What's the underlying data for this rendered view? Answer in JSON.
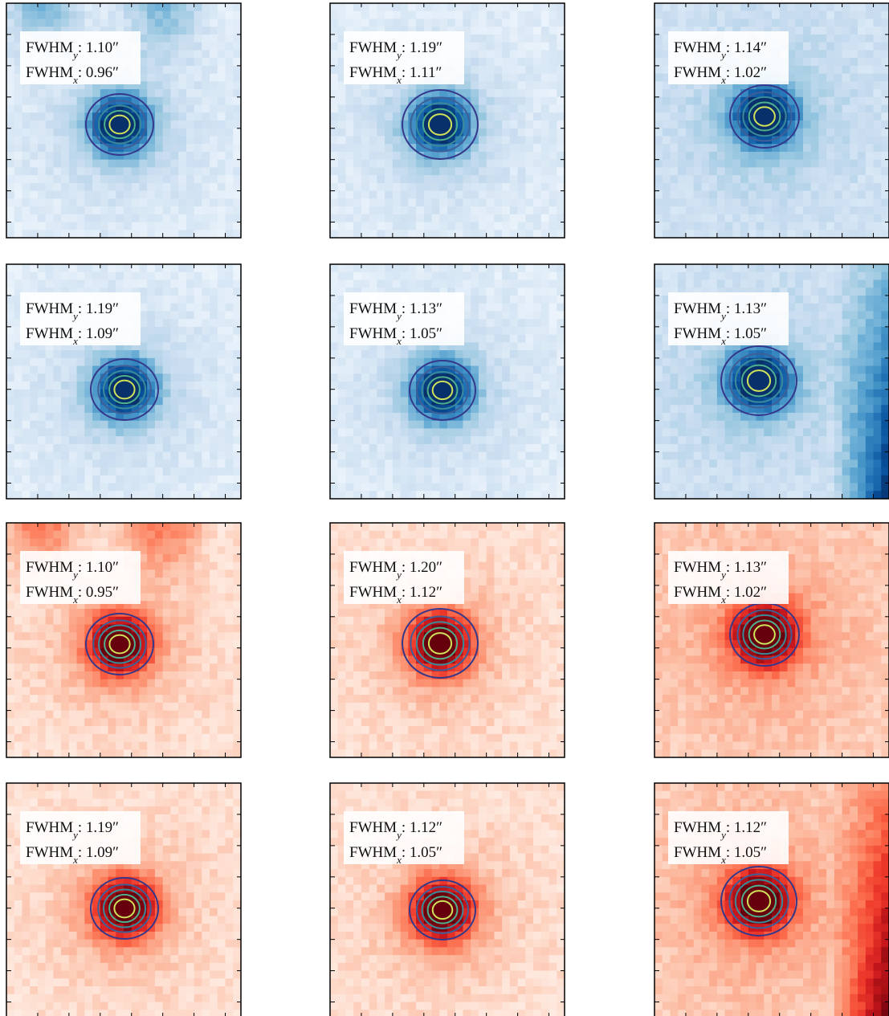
{
  "panels": [
    {
      "lines": [
        {
          "name": "FWHM",
          "sub": "y",
          "rest": ": 1.10″"
        },
        {
          "name": "FWHM",
          "sub": "x",
          "rest": ": 0.96″"
        }
      ]
    },
    {
      "lines": [
        {
          "name": "FWHM",
          "sub": "y",
          "rest": ": 1.19″"
        },
        {
          "name": "FWHM",
          "sub": "x",
          "rest": ": 1.11″"
        }
      ]
    },
    {
      "lines": [
        {
          "name": "FWHM",
          "sub": "y",
          "rest": ": 1.14″"
        },
        {
          "name": "FWHM",
          "sub": "x",
          "rest": ": 1.02″"
        }
      ]
    },
    {
      "lines": [
        {
          "name": "FWHM",
          "sub": "y",
          "rest": ": 1.19″"
        },
        {
          "name": "FWHM",
          "sub": "x",
          "rest": ": 1.09″"
        }
      ]
    },
    {
      "lines": [
        {
          "name": "FWHM",
          "sub": "y",
          "rest": ": 1.13″"
        },
        {
          "name": "FWHM",
          "sub": "x",
          "rest": ": 1.05″"
        }
      ]
    },
    {
      "lines": [
        {
          "name": "FWHM",
          "sub": "y",
          "rest": ": 1.13″"
        },
        {
          "name": "FWHM",
          "sub": "x",
          "rest": ": 1.05″"
        }
      ]
    },
    {
      "lines": [
        {
          "name": "FWHM",
          "sub": "y",
          "rest": ": 1.10″"
        },
        {
          "name": "FWHM",
          "sub": "x",
          "rest": ": 0.95″"
        }
      ]
    },
    {
      "lines": [
        {
          "name": "FWHM",
          "sub": "y",
          "rest": ": 1.20″"
        },
        {
          "name": "FWHM",
          "sub": "x",
          "rest": ": 1.12″"
        }
      ]
    },
    {
      "lines": [
        {
          "name": "FWHM",
          "sub": "y",
          "rest": ": 1.13″"
        },
        {
          "name": "FWHM",
          "sub": "x",
          "rest": ": 1.02″"
        }
      ]
    },
    {
      "lines": [
        {
          "name": "FWHM",
          "sub": "y",
          "rest": ": 1.19″"
        },
        {
          "name": "FWHM",
          "sub": "x",
          "rest": ": 1.09″"
        }
      ]
    },
    {
      "lines": [
        {
          "name": "FWHM",
          "sub": "y",
          "rest": ": 1.12″"
        },
        {
          "name": "FWHM",
          "sub": "x",
          "rest": ": 1.05″"
        }
      ]
    },
    {
      "lines": [
        {
          "name": "FWHM",
          "sub": "y",
          "rest": ": 1.12″"
        },
        {
          "name": "FWHM",
          "sub": "x",
          "rest": ": 1.05″"
        }
      ]
    }
  ]
}
